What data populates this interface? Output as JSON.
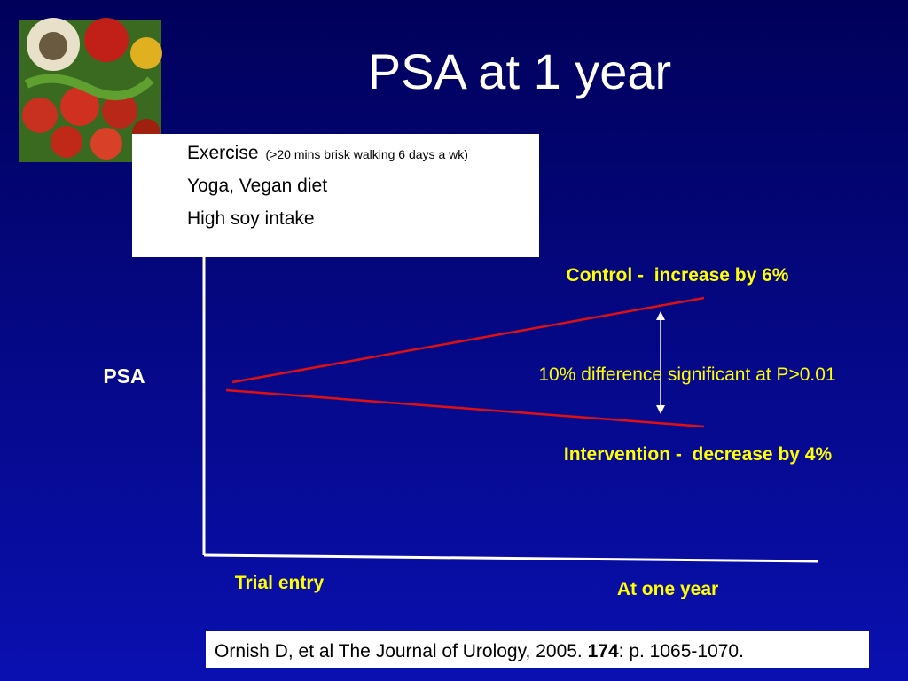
{
  "title": "PSA at 1 year",
  "box": {
    "items": [
      {
        "text": "Exercise",
        "note": "(>20 mins brisk walking 6 days a wk)"
      },
      {
        "text": "Yoga, Vegan diet"
      },
      {
        "text": "High soy intake"
      }
    ]
  },
  "diagram": {
    "y_label": "PSA",
    "control_label": "Control -  increase by 6%",
    "difference_label": "10% difference significant at P>0.01",
    "intervention_label": "Intervention -  decrease by 4%",
    "x_start_label": "Trial entry",
    "x_end_label": "At one year"
  },
  "citation": {
    "before": "Ornish D, et al The Journal of Urology, 2005. ",
    "bold": "174",
    "after": ": p. 1065-1070."
  }
}
